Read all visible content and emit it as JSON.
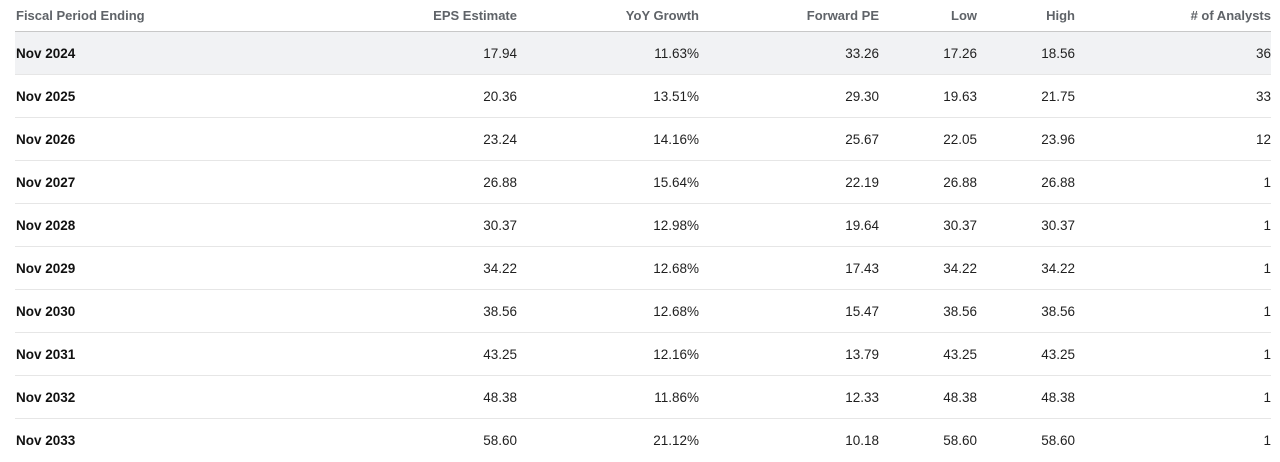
{
  "table": {
    "headers": [
      "Fiscal Period Ending",
      "EPS Estimate",
      "YoY Growth",
      "Forward PE",
      "Low",
      "High",
      "# of Analysts"
    ],
    "rows": [
      [
        "Nov 2024",
        "17.94",
        "11.63%",
        "33.26",
        "17.26",
        "18.56",
        "36"
      ],
      [
        "Nov 2025",
        "20.36",
        "13.51%",
        "29.30",
        "19.63",
        "21.75",
        "33"
      ],
      [
        "Nov 2026",
        "23.24",
        "14.16%",
        "25.67",
        "22.05",
        "23.96",
        "12"
      ],
      [
        "Nov 2027",
        "26.88",
        "15.64%",
        "22.19",
        "26.88",
        "26.88",
        "1"
      ],
      [
        "Nov 2028",
        "30.37",
        "12.98%",
        "19.64",
        "30.37",
        "30.37",
        "1"
      ],
      [
        "Nov 2029",
        "34.22",
        "12.68%",
        "17.43",
        "34.22",
        "34.22",
        "1"
      ],
      [
        "Nov 2030",
        "38.56",
        "12.68%",
        "15.47",
        "38.56",
        "38.56",
        "1"
      ],
      [
        "Nov 2031",
        "43.25",
        "12.16%",
        "13.79",
        "43.25",
        "43.25",
        "1"
      ],
      [
        "Nov 2032",
        "48.38",
        "11.86%",
        "12.33",
        "48.38",
        "48.38",
        "1"
      ],
      [
        "Nov 2033",
        "58.60",
        "21.12%",
        "10.18",
        "58.60",
        "58.60",
        "1"
      ]
    ]
  },
  "colors": {
    "header_text": "#5f6368",
    "highlight_row": "#f1f2f4",
    "row_divider": "#e6e6e6"
  }
}
